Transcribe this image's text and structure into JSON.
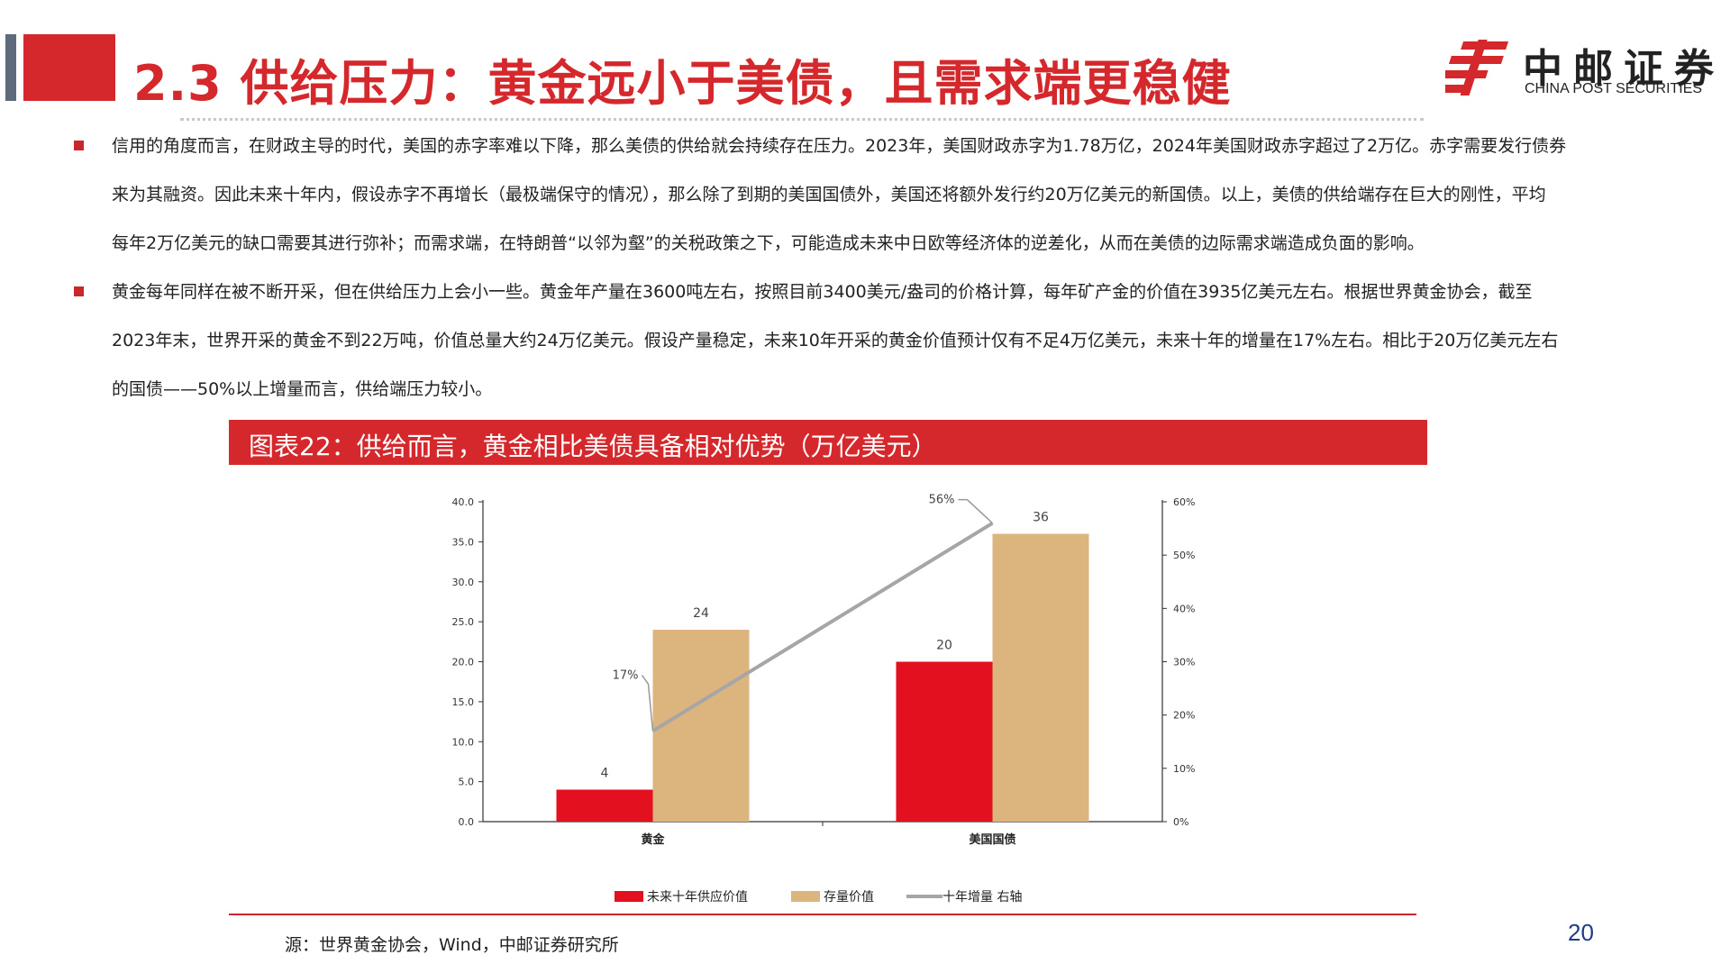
{
  "header": {
    "title": "2.3 供给压力：黄金远小于美债，且需求端更稳健",
    "logo_cn": "中邮证券",
    "logo_en": "CHINA POST SECURITIES"
  },
  "paragraphs": [
    {
      "lines": [
        "信用的角度而言，在财政主导的时代，美国的赤字率难以下降，那么美债的供给就会持续存在压力。2023年，美国财政赤字为1.78万亿，2024年美国财政赤字超过了2万亿。赤字需要发行债券",
        "来为其融资。因此未来十年内，假设赤字不再增长（最极端保守的情况），那么除了到期的美国国债外，美国还将额外发行约20万亿美元的新国债。以上，美债的供给端存在巨大的刚性，平均",
        "每年2万亿美元的缺口需要其进行弥补；而需求端，在特朗普“以邻为壑”的关税政策之下，可能造成未来中日欧等经济体的逆差化，从而在美债的边际需求端造成负面的影响。"
      ]
    },
    {
      "lines": [
        "黄金每年同样在被不断开采，但在供给压力上会小一些。黄金年产量在3600吨左右，按照目前3400美元/盎司的价格计算，每年矿产金的价值在3935亿美元左右。根据世界黄金协会，截至",
        "2023年末，世界开采的黄金不到22万吨，价值总量大约24万亿美元。假设产量稳定，未来10年开采的黄金价值预计仅有不足4万亿美元，未来十年的增量在17%左右。相比于20万亿美元左右",
        "的国债——50%以上增量而言，供给端压力较小。"
      ]
    }
  ],
  "figure": {
    "banner": "图表22：供给而言，黄金相比美债具备相对优势（万亿美元）",
    "source": "源：世界黄金协会，Wind，中邮证券研究所"
  },
  "page_number": "20",
  "colors": {
    "brand_red": "#d4282c",
    "bar_supply": "#e3101f",
    "bar_stock": "#dcb47e",
    "line": "#a6a6a6"
  },
  "chart_data": {
    "type": "bar",
    "categories": [
      "黄金",
      "美国国债"
    ],
    "series": [
      {
        "name": "未来十年供应价值",
        "values": [
          4,
          20
        ],
        "labels": [
          "4",
          "20"
        ],
        "axis": "left"
      },
      {
        "name": "存量价值",
        "values": [
          24,
          36
        ],
        "labels": [
          "24",
          "36"
        ],
        "axis": "left"
      },
      {
        "name": "十年增量  右轴",
        "type": "line",
        "values": [
          0.17,
          0.56
        ],
        "labels": [
          "17%",
          "56%"
        ],
        "axis": "right"
      }
    ],
    "y_left": {
      "ylim": [
        0,
        40
      ],
      "ticks": [
        "0.0",
        "5.0",
        "10.0",
        "15.0",
        "20.0",
        "25.0",
        "30.0",
        "35.0",
        "40.0"
      ]
    },
    "y_right": {
      "ylim": [
        0,
        0.6
      ],
      "ticks": [
        "0%",
        "10%",
        "20%",
        "30%",
        "40%",
        "50%",
        "60%"
      ]
    },
    "legend_position": "bottom",
    "grid": false
  }
}
